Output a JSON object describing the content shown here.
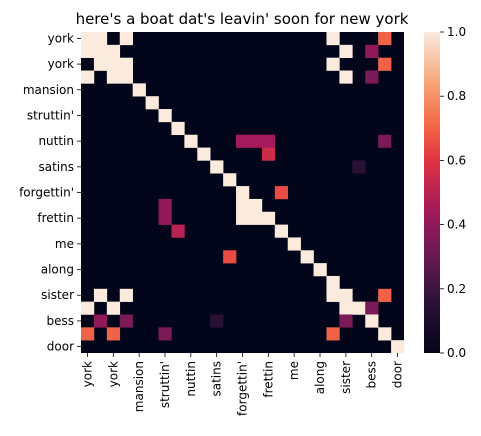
{
  "chart_data": {
    "type": "heatmap",
    "title": "here's a boat dat's leavin' soon for new york",
    "xlabel": "",
    "ylabel": "",
    "n": 25,
    "row_tick_labels": [
      "york",
      "york",
      "mansion",
      "struttin'",
      "nuttin",
      "satins",
      "forgettin'",
      "frettin",
      "me",
      "along",
      "sister",
      "bess",
      "door"
    ],
    "col_tick_labels": [
      "york",
      "york",
      "mansion",
      "struttin'",
      "nuttin",
      "satins",
      "forgettin'",
      "frettin",
      "me",
      "along",
      "sister",
      "bess",
      "door"
    ],
    "tick_every": 2,
    "diagonal_value": 1.0,
    "cells": [
      [
        0,
        1,
        1.0
      ],
      [
        0,
        3,
        1.0
      ],
      [
        0,
        19,
        1.0
      ],
      [
        0,
        23,
        0.7
      ],
      [
        1,
        0,
        1.0
      ],
      [
        1,
        2,
        1.0
      ],
      [
        1,
        20,
        1.0
      ],
      [
        1,
        22,
        0.4
      ],
      [
        2,
        1,
        1.0
      ],
      [
        2,
        3,
        1.0
      ],
      [
        2,
        19,
        1.0
      ],
      [
        2,
        23,
        0.7
      ],
      [
        3,
        0,
        1.0
      ],
      [
        3,
        2,
        1.0
      ],
      [
        3,
        20,
        1.0
      ],
      [
        3,
        22,
        0.35
      ],
      [
        8,
        12,
        0.45
      ],
      [
        8,
        13,
        0.45
      ],
      [
        8,
        14,
        0.45
      ],
      [
        8,
        23,
        0.35
      ],
      [
        9,
        14,
        0.55
      ],
      [
        10,
        21,
        0.15
      ],
      [
        12,
        15,
        0.65
      ],
      [
        13,
        6,
        0.4
      ],
      [
        13,
        12,
        1.0
      ],
      [
        13,
        13,
        1.0
      ],
      [
        14,
        6,
        0.4
      ],
      [
        14,
        12,
        1.0
      ],
      [
        14,
        13,
        1.0
      ],
      [
        15,
        7,
        0.5
      ],
      [
        17,
        11,
        0.65
      ],
      [
        20,
        1,
        1.0
      ],
      [
        20,
        3,
        1.0
      ],
      [
        20,
        19,
        1.0
      ],
      [
        20,
        23,
        0.7
      ],
      [
        21,
        0,
        1.0
      ],
      [
        21,
        2,
        1.0
      ],
      [
        21,
        20,
        1.0
      ],
      [
        21,
        22,
        0.35
      ],
      [
        22,
        1,
        0.4
      ],
      [
        22,
        3,
        0.35
      ],
      [
        22,
        10,
        0.15
      ],
      [
        22,
        20,
        0.35
      ],
      [
        23,
        0,
        0.7
      ],
      [
        23,
        2,
        0.7
      ],
      [
        23,
        6,
        0.35
      ],
      [
        23,
        19,
        0.7
      ]
    ],
    "colormap": "rocket",
    "vmin": 0.0,
    "vmax": 1.0,
    "colorbar_ticks": [
      "0.0",
      "0.2",
      "0.4",
      "0.6",
      "0.8",
      "1.0"
    ],
    "grid": false
  }
}
